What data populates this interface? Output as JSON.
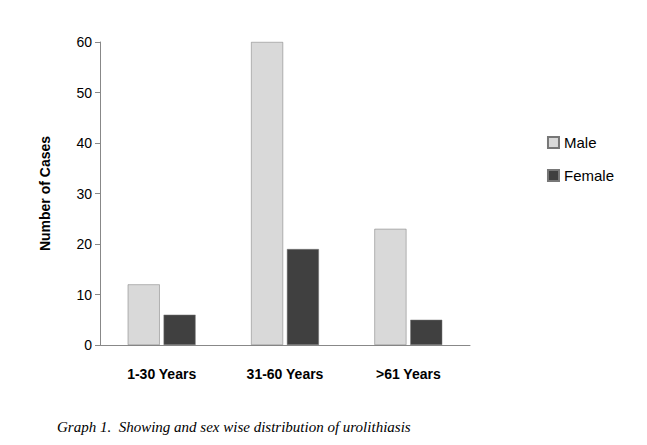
{
  "chart_data": {
    "type": "bar",
    "title": "Graph 1.  Showing and sex wise distribution of urolithiasis",
    "y_label": "Number of Cases",
    "categories": [
      "1-30 Years",
      "31-60 Years",
      ">61 Years"
    ],
    "series": [
      {
        "name": "Male",
        "color": "#d9d9d9",
        "values": [
          12,
          60,
          23
        ]
      },
      {
        "name": "Female",
        "color": "#404040",
        "values": [
          6,
          19,
          5
        ]
      }
    ],
    "ylim": [
      0,
      60
    ],
    "yticks": [
      0,
      10,
      20,
      30,
      40,
      50,
      60
    ],
    "grid": false,
    "legend": "right"
  }
}
